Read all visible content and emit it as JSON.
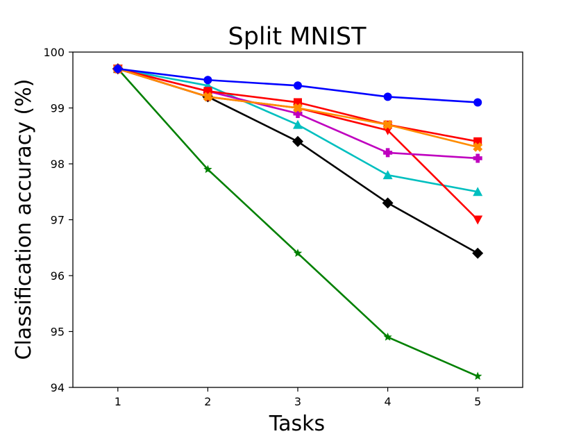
{
  "chart_data": {
    "type": "line",
    "title": "Split MNIST",
    "xlabel": "Tasks",
    "ylabel": "Classification accuracy (%)",
    "x": [
      1,
      2,
      3,
      4,
      5
    ],
    "xlim": [
      0.5,
      5.5
    ],
    "ylim": [
      94,
      100
    ],
    "xticks": [
      "1",
      "2",
      "3",
      "4",
      "5"
    ],
    "yticks": [
      "94",
      "95",
      "96",
      "97",
      "98",
      "99",
      "100"
    ],
    "grid": false,
    "legend": "none",
    "series": [
      {
        "color": "#008000",
        "marker": "star",
        "values": [
          99.7,
          97.9,
          96.4,
          94.9,
          94.2
        ]
      },
      {
        "color": "#000000",
        "marker": "diamond",
        "values": [
          99.7,
          99.2,
          98.4,
          97.3,
          96.4
        ]
      },
      {
        "color": "#00bfbf",
        "marker": "triangle-up",
        "values": [
          99.7,
          99.4,
          98.7,
          97.8,
          97.5
        ]
      },
      {
        "color": "#ff0000",
        "marker": "triangle-down",
        "values": [
          99.7,
          99.2,
          99.0,
          98.6,
          97.0
        ]
      },
      {
        "color": "#bf00bf",
        "marker": "plus",
        "values": [
          99.7,
          99.3,
          98.9,
          98.2,
          98.1
        ]
      },
      {
        "color": "#ff0000",
        "marker": "square",
        "values": [
          99.7,
          99.3,
          99.1,
          98.7,
          98.4
        ]
      },
      {
        "color": "#ff8c00",
        "marker": "x",
        "values": [
          99.7,
          99.2,
          99.0,
          98.7,
          98.3
        ]
      },
      {
        "color": "#0000ff",
        "marker": "circle",
        "values": [
          99.7,
          99.5,
          99.4,
          99.2,
          99.1
        ]
      }
    ]
  }
}
